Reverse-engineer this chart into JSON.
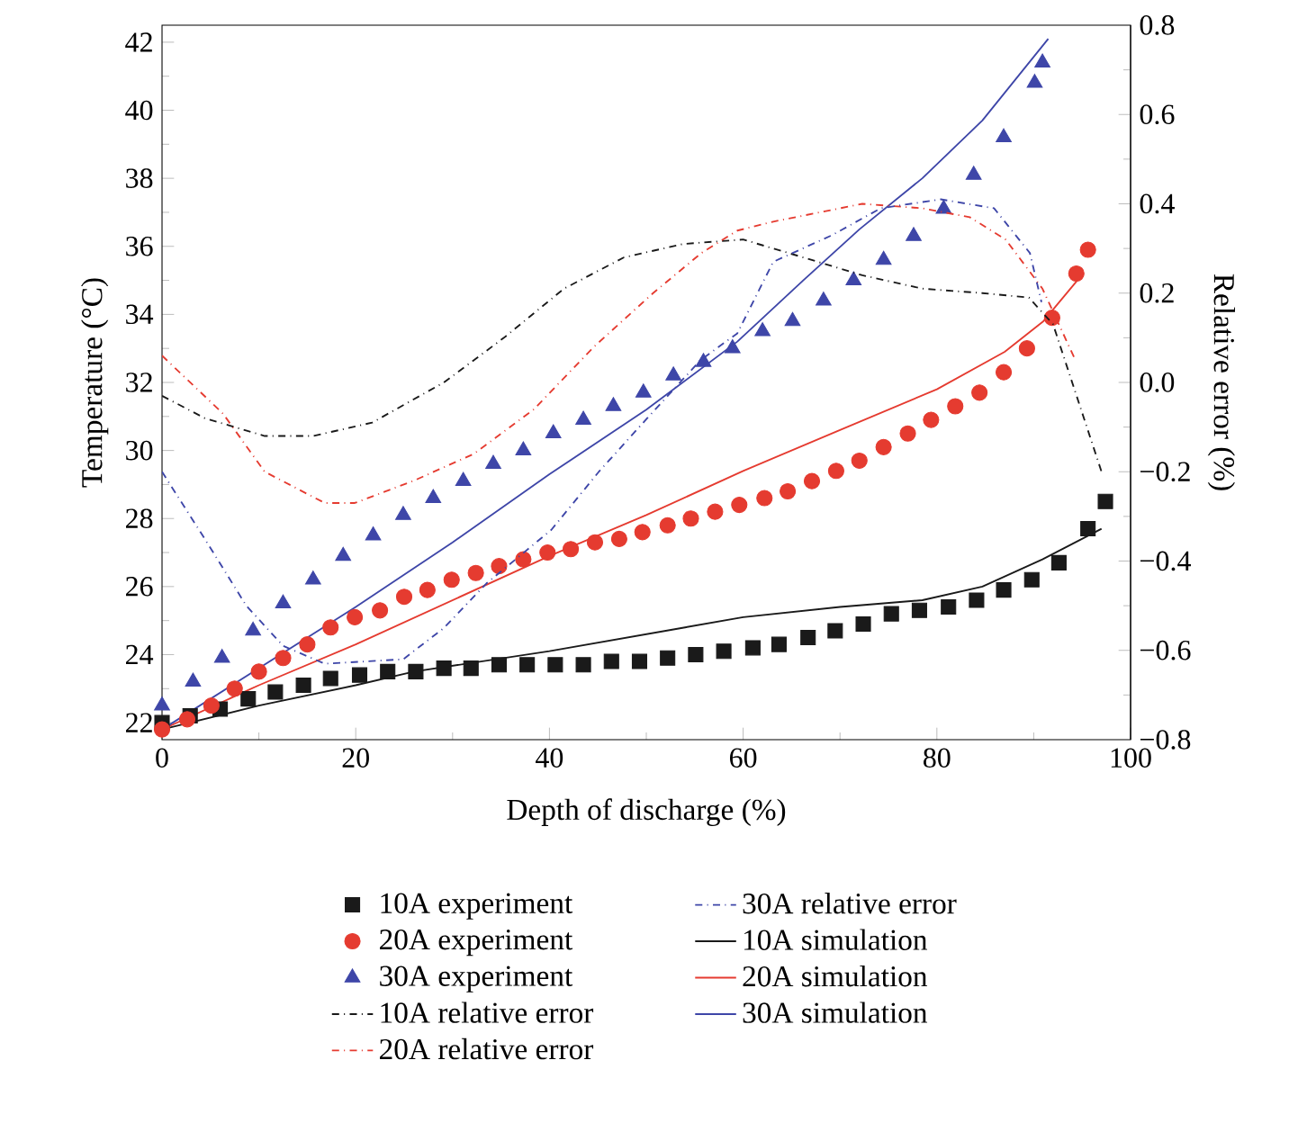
{
  "chart_data": {
    "type": "scatter",
    "xlabel": "Depth of discharge (%)",
    "ylabel": "Temperature (°C)",
    "y2label": "Relative error (%)",
    "xlim": [
      0,
      100
    ],
    "xticks": [
      0,
      20,
      40,
      60,
      80,
      100
    ],
    "ylim": [
      21.5,
      42.5
    ],
    "yticks": [
      22,
      24,
      26,
      28,
      30,
      32,
      34,
      36,
      38,
      40,
      42
    ],
    "y2lim": [
      -0.8,
      0.8
    ],
    "y2ticks": [
      {
        "value": -0.8,
        "label": "−0.8"
      },
      {
        "value": -0.6,
        "label": "−0.6"
      },
      {
        "value": -0.4,
        "label": "−0.4"
      },
      {
        "value": -0.2,
        "label": "−0.2"
      },
      {
        "value": 0,
        "label": "0.0"
      },
      {
        "value": 0.2,
        "label": "0.2"
      },
      {
        "value": 0.4,
        "label": "0.4"
      },
      {
        "value": 0.6,
        "label": "0.6"
      },
      {
        "value": 0.8,
        "label": "0.8"
      }
    ],
    "grid": false,
    "legend": "bottom",
    "series": [
      {
        "name": "10A experiment",
        "marker": "square",
        "color": "#1a1a1a",
        "x": [
          0,
          2.9,
          6.0,
          8.9,
          11.7,
          14.6,
          17.4,
          20.4,
          23.3,
          26.2,
          29.1,
          31.9,
          34.8,
          37.7,
          40.6,
          43.5,
          46.4,
          49.3,
          52.2,
          55.1,
          58.0,
          61.0,
          63.7,
          66.7,
          69.5,
          72.4,
          75.3,
          78.2,
          81.2,
          84.1,
          86.9,
          89.8,
          92.6,
          95.6,
          97.4
        ],
        "values": [
          22.0,
          22.2,
          22.4,
          22.7,
          22.9,
          23.1,
          23.3,
          23.4,
          23.5,
          23.5,
          23.6,
          23.6,
          23.7,
          23.7,
          23.7,
          23.7,
          23.8,
          23.8,
          23.9,
          24.0,
          24.1,
          24.2,
          24.3,
          24.5,
          24.7,
          24.9,
          25.2,
          25.3,
          25.4,
          25.6,
          25.9,
          26.2,
          26.7,
          27.7,
          28.5
        ]
      },
      {
        "name": "20A experiment",
        "marker": "circle",
        "color": "#e53b30",
        "x": [
          0,
          2.6,
          5.1,
          7.5,
          10.0,
          12.5,
          15.0,
          17.4,
          19.9,
          22.5,
          25.0,
          27.4,
          29.9,
          32.4,
          34.8,
          37.3,
          39.8,
          42.2,
          44.7,
          47.2,
          49.6,
          52.2,
          54.6,
          57.1,
          59.6,
          62.2,
          64.6,
          67.1,
          69.6,
          72.0,
          74.5,
          77.0,
          79.4,
          81.9,
          84.4,
          86.9,
          89.3,
          91.9,
          94.4,
          95.6
        ],
        "values": [
          21.8,
          22.1,
          22.5,
          23.0,
          23.5,
          23.9,
          24.3,
          24.8,
          25.1,
          25.3,
          25.7,
          25.9,
          26.2,
          26.4,
          26.6,
          26.8,
          27.0,
          27.1,
          27.3,
          27.4,
          27.6,
          27.8,
          28.0,
          28.2,
          28.4,
          28.6,
          28.8,
          29.1,
          29.4,
          29.7,
          30.1,
          30.5,
          30.9,
          31.3,
          31.7,
          32.3,
          33.0,
          33.9,
          35.2,
          35.9
        ]
      },
      {
        "name": "30A experiment",
        "marker": "triangle",
        "color": "#3e46a8",
        "x": [
          0,
          3.2,
          6.2,
          9.4,
          12.5,
          15.6,
          18.7,
          21.8,
          24.9,
          28.0,
          31.1,
          34.2,
          37.3,
          40.4,
          43.5,
          46.6,
          49.7,
          52.8,
          55.9,
          58.9,
          62.0,
          65.1,
          68.3,
          71.4,
          74.5,
          77.6,
          80.7,
          83.8,
          86.9,
          90.1,
          90.9
        ],
        "values": [
          22.5,
          23.2,
          23.9,
          24.7,
          25.5,
          26.2,
          26.9,
          27.5,
          28.1,
          28.6,
          29.1,
          29.6,
          30.0,
          30.5,
          30.9,
          31.3,
          31.7,
          32.2,
          32.6,
          33.0,
          33.5,
          33.8,
          34.4,
          35.0,
          35.6,
          36.3,
          37.1,
          38.1,
          39.2,
          40.8,
          41.4
        ]
      },
      {
        "name": "10A relative error",
        "type": "line",
        "axis": "y2",
        "line_style": "dashdot",
        "color": "#1a1a1a",
        "x": [
          0,
          4.4,
          10.6,
          15.6,
          21.7,
          29.1,
          35.3,
          41.5,
          47.7,
          53.8,
          60.0,
          66.2,
          72.3,
          78.5,
          84.7,
          89.5,
          92.0,
          97.0
        ],
        "values": [
          -0.03,
          -0.08,
          -0.12,
          -0.12,
          -0.09,
          0.0,
          0.1,
          0.21,
          0.28,
          0.31,
          0.32,
          0.28,
          0.24,
          0.21,
          0.2,
          0.19,
          0.13,
          -0.2
        ]
      },
      {
        "name": "20A relative error",
        "type": "line",
        "axis": "y2",
        "line_style": "dashdot",
        "color": "#e53b30",
        "x": [
          0,
          6.3,
          10.6,
          16.8,
          19.9,
          26.0,
          32.2,
          38.4,
          44.6,
          50.7,
          55.7,
          59.4,
          63.1,
          72.3,
          78.5,
          83.4,
          87.1,
          90.9,
          94.3
        ],
        "values": [
          0.06,
          -0.07,
          -0.2,
          -0.27,
          -0.27,
          -0.22,
          -0.16,
          -0.06,
          0.08,
          0.2,
          0.29,
          0.34,
          0.36,
          0.4,
          0.39,
          0.37,
          0.32,
          0.21,
          0.05
        ]
      },
      {
        "name": "30A relative error",
        "type": "line",
        "axis": "y2",
        "line_style": "dashdot",
        "color": "#3e46a8",
        "x": [
          0,
          4.4,
          8.7,
          12.5,
          16.8,
          24.9,
          29.1,
          33.5,
          40.2,
          45.1,
          50.1,
          55.6,
          59.4,
          63.1,
          69.2,
          74.2,
          80.4,
          85.9,
          89.6,
          90.8
        ],
        "values": [
          -0.2,
          -0.35,
          -0.5,
          -0.59,
          -0.63,
          -0.62,
          -0.55,
          -0.45,
          -0.33,
          -0.2,
          -0.08,
          0.05,
          0.11,
          0.27,
          0.33,
          0.39,
          0.41,
          0.39,
          0.29,
          0.18
        ]
      },
      {
        "name": "10A simulation",
        "type": "line",
        "line_style": "solid",
        "color": "#1a1a1a",
        "x": [
          0,
          10,
          20,
          26,
          40,
          54,
          60,
          70,
          78.5,
          84.7,
          90.9,
          97
        ],
        "values": [
          21.8,
          22.5,
          23.1,
          23.5,
          24.1,
          24.8,
          25.1,
          25.4,
          25.6,
          26.0,
          26.8,
          27.7
        ]
      },
      {
        "name": "20A simulation",
        "type": "line",
        "line_style": "solid",
        "color": "#e53b30",
        "x": [
          0,
          10,
          20,
          30,
          40,
          50,
          60,
          70,
          80,
          87,
          91,
          94.5
        ],
        "values": [
          21.8,
          23.1,
          24.3,
          25.6,
          26.9,
          28.1,
          29.4,
          30.6,
          31.8,
          32.9,
          33.8,
          35.0
        ]
      },
      {
        "name": "30A simulation",
        "type": "line",
        "line_style": "solid",
        "color": "#3e46a8",
        "x": [
          0,
          10,
          20,
          30,
          40,
          50,
          59.4,
          66.2,
          72,
          78.5,
          84.7,
          91.5
        ],
        "values": [
          21.8,
          23.6,
          25.4,
          27.3,
          29.3,
          31.2,
          33.2,
          35.0,
          36.5,
          38.0,
          39.7,
          42.1
        ]
      }
    ]
  }
}
